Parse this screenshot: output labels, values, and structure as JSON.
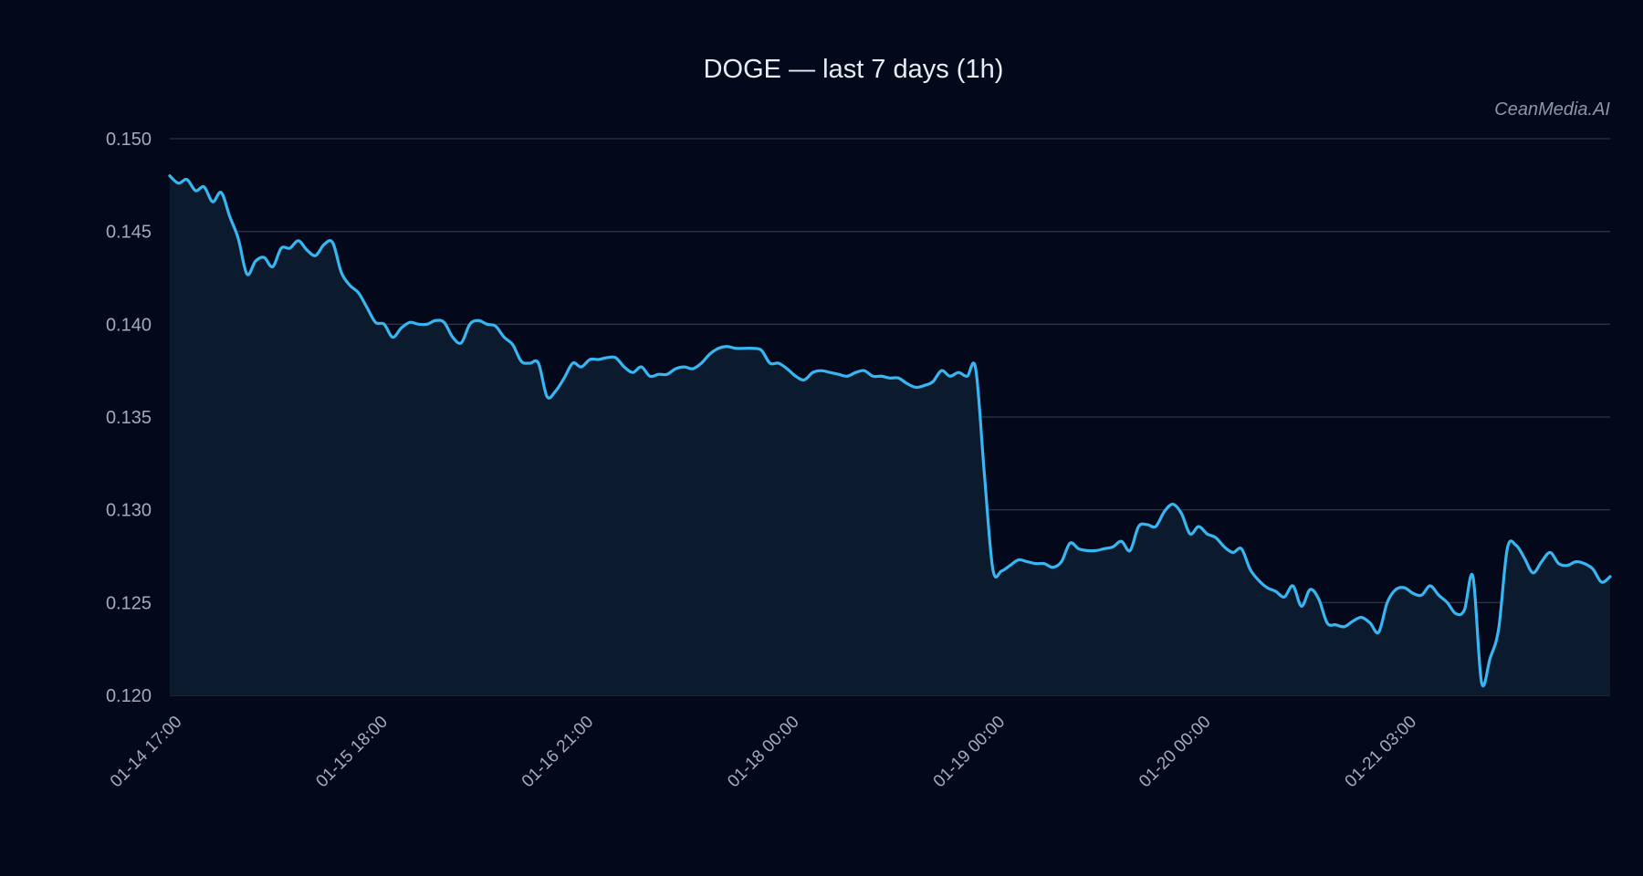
{
  "colors": {
    "background": "#03081a",
    "line": "#38b6f2",
    "area": "#0b1a2c",
    "grid": "#2b3445",
    "title": "#e8edf5",
    "tick_text": "#a2abbb",
    "watermark": "#8d96a8"
  },
  "watermark": "CeanMedia.AI",
  "chart_data": {
    "type": "area",
    "title": "DOGE — last 7 days (1h)",
    "xlabel": "",
    "ylabel": "",
    "ylim": [
      0.12,
      0.15
    ],
    "yticks": [
      0.12,
      0.125,
      0.13,
      0.135,
      0.14,
      0.145,
      0.15
    ],
    "ytick_labels": [
      "0.120",
      "0.125",
      "0.130",
      "0.135",
      "0.140",
      "0.145",
      "0.150"
    ],
    "xticks": [
      "01-14 17:00",
      "01-15 18:00",
      "01-16 21:00",
      "01-18 00:00",
      "01-19 00:00",
      "01-20 00:00",
      "01-21 03:00"
    ],
    "x_start": "2025-01-14 17:00",
    "x_interval": "1h",
    "grid": true,
    "legend": false,
    "series": [
      {
        "values": [
          0.148,
          0.1476,
          0.1478,
          0.1472,
          0.1474,
          0.1466,
          0.1471,
          0.1458,
          0.1446,
          0.1427,
          0.1434,
          0.1436,
          0.1431,
          0.1441,
          0.1441,
          0.1445,
          0.144,
          0.1437,
          0.1443,
          0.1444,
          0.1428,
          0.1421,
          0.1417,
          0.1409,
          0.1401,
          0.14,
          0.1393,
          0.1398,
          0.1401,
          0.14,
          0.14,
          0.1402,
          0.1401,
          0.1393,
          0.139,
          0.14,
          0.1402,
          0.14,
          0.1399,
          0.1393,
          0.1389,
          0.138,
          0.1379,
          0.1379,
          0.1361,
          0.1364,
          0.1371,
          0.1379,
          0.1377,
          0.1381,
          0.1381,
          0.1382,
          0.1382,
          0.1377,
          0.1374,
          0.1377,
          0.1372,
          0.1373,
          0.1373,
          0.1376,
          0.1377,
          0.1376,
          0.1379,
          0.1384,
          0.1387,
          0.1388,
          0.1387,
          0.1387,
          0.1387,
          0.1386,
          0.1379,
          0.1379,
          0.1376,
          0.1372,
          0.137,
          0.1374,
          0.1375,
          0.1374,
          0.1373,
          0.1372,
          0.1374,
          0.1375,
          0.1372,
          0.1372,
          0.1371,
          0.1371,
          0.1368,
          0.1366,
          0.1367,
          0.1369,
          0.1375,
          0.1372,
          0.1374,
          0.1372,
          0.1376,
          0.132,
          0.1268,
          0.1267,
          0.127,
          0.1273,
          0.1272,
          0.1271,
          0.1271,
          0.1269,
          0.1272,
          0.1282,
          0.1279,
          0.1278,
          0.1278,
          0.1279,
          0.128,
          0.1283,
          0.1278,
          0.1291,
          0.1292,
          0.1291,
          0.1299,
          0.1303,
          0.1298,
          0.1287,
          0.1291,
          0.1287,
          0.1285,
          0.128,
          0.1277,
          0.1279,
          0.1268,
          0.1262,
          0.1258,
          0.1256,
          0.1253,
          0.1259,
          0.1248,
          0.1257,
          0.1252,
          0.1239,
          0.1238,
          0.1237,
          0.124,
          0.1242,
          0.1239,
          0.1234,
          0.125,
          0.1257,
          0.1258,
          0.1255,
          0.1254,
          0.1259,
          0.1254,
          0.125,
          0.1244,
          0.1246,
          0.1264,
          0.1207,
          0.122,
          0.1236,
          0.1279,
          0.1281,
          0.1274,
          0.1266,
          0.1272,
          0.1277,
          0.1271,
          0.127,
          0.1272,
          0.1271,
          0.1268,
          0.1261,
          0.1264
        ]
      }
    ]
  }
}
